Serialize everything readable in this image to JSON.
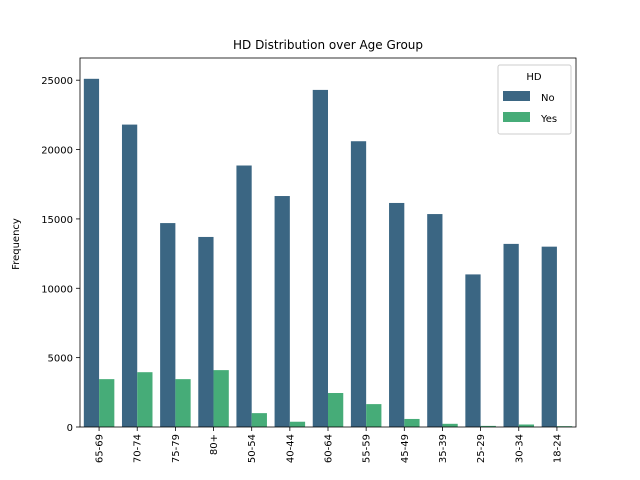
{
  "chart_data": {
    "type": "bar",
    "title": "HD Distribution over Age Group",
    "xlabel": "",
    "ylabel": "Frequency",
    "categories": [
      "65-69",
      "70-74",
      "75-79",
      "80+",
      "50-54",
      "40-44",
      "60-64",
      "55-59",
      "45-49",
      "35-39",
      "25-29",
      "30-34",
      "18-24"
    ],
    "series": [
      {
        "name": "No",
        "color": "#3b6683",
        "values": [
          25100,
          21800,
          14700,
          13700,
          18850,
          16650,
          24300,
          20600,
          16150,
          15350,
          11000,
          13200,
          13000
        ]
      },
      {
        "name": "Yes",
        "color": "#46ac78",
        "values": [
          3450,
          3950,
          3450,
          4100,
          1000,
          380,
          2450,
          1650,
          580,
          230,
          80,
          180,
          60
        ]
      }
    ],
    "ylim": [
      0,
      26600
    ],
    "yticks": [
      0,
      5000,
      10000,
      15000,
      20000,
      25000
    ],
    "legend": {
      "title": "HD",
      "placement": "top-right"
    },
    "grid": false
  }
}
